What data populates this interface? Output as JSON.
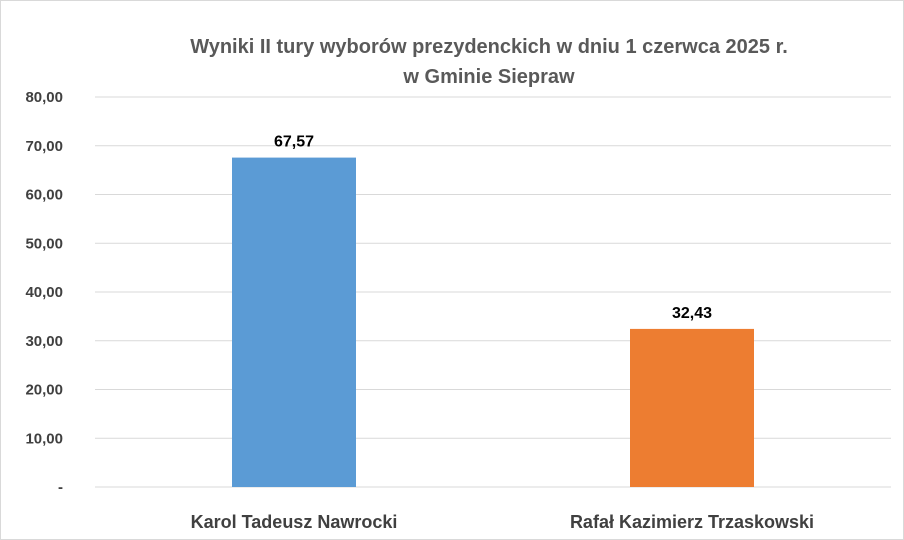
{
  "chart_data": {
    "type": "bar",
    "title_lines": [
      "Wyniki II tury wyborów prezydenckich w dniu 1 czerwca 2025 r.",
      "w Gminie Siepraw"
    ],
    "categories": [
      "Karol Tadeusz Nawrocki",
      "Rafał Kazimierz Trzaskowski"
    ],
    "values": [
      67.57,
      32.43
    ],
    "data_labels": [
      "67,57",
      "32,43"
    ],
    "bar_colors": [
      "#5b9bd5",
      "#ed7d31"
    ],
    "ylim": [
      0,
      80
    ],
    "y_ticks": [
      0,
      10,
      20,
      30,
      40,
      50,
      60,
      70,
      80
    ],
    "y_tick_labels": [
      "-",
      "10,00",
      "20,00",
      "30,00",
      "40,00",
      "50,00",
      "60,00",
      "70,00",
      "80,00"
    ],
    "xlabel": "",
    "ylabel": "",
    "grid": true,
    "legend": false
  }
}
